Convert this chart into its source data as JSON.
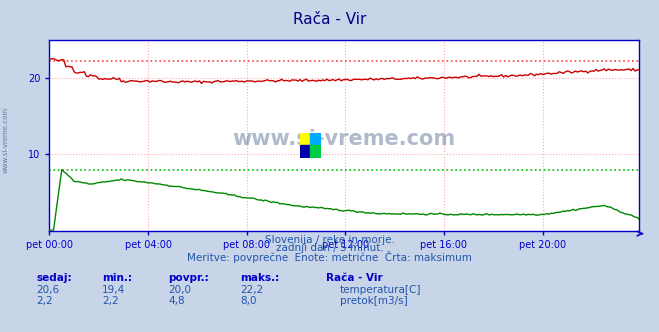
{
  "title": "Rača - Vir",
  "fig_bg_color": "#c8d4e8",
  "plot_bg_color": "#ffffff",
  "grid_color": "#ffaaaa",
  "xlabel_ticks": [
    "pet 00:00",
    "pet 04:00",
    "pet 08:00",
    "pet 12:00",
    "pet 16:00",
    "pet 20:00"
  ],
  "ylabel_ticks": [
    10,
    20
  ],
  "ylim": [
    0,
    25
  ],
  "xlim": [
    0,
    287
  ],
  "temp_color": "#cc0000",
  "flow_color": "#008800",
  "dashed_temp_color": "#ff4444",
  "dashed_flow_color": "#00bb00",
  "title_color": "#000088",
  "watermark_color": "#1a3a6a",
  "subtitle1": "Slovenija / reke in morje.",
  "subtitle2": "zadnji dan / 5 minut.",
  "subtitle3": "Meritve: povprečne  Enote: metrične  Črta: maksimum",
  "legend_title": "Rača - Vir",
  "legend_items": [
    "temperatura[C]",
    "pretok[m3/s]"
  ],
  "legend_colors": [
    "#cc0000",
    "#008800"
  ],
  "table_headers": [
    "sedaj:",
    "min.:",
    "povpr.:",
    "maks.:"
  ],
  "table_row1": [
    "20,6",
    "19,4",
    "20,0",
    "22,2"
  ],
  "table_row2": [
    "2,2",
    "2,2",
    "4,8",
    "8,0"
  ],
  "temp_max_line": 22.2,
  "flow_max_line": 8.0,
  "axis_color": "#0000cc",
  "tick_color": "#0000cc",
  "text_color": "#2255aa",
  "header_color": "#0000cc",
  "watermark_text": "www.si-vreme.com",
  "side_label": "www.si-vreme.com",
  "logo_colors": [
    "#ffff00",
    "#00aaff",
    "#0000aa",
    "#00cc44"
  ]
}
